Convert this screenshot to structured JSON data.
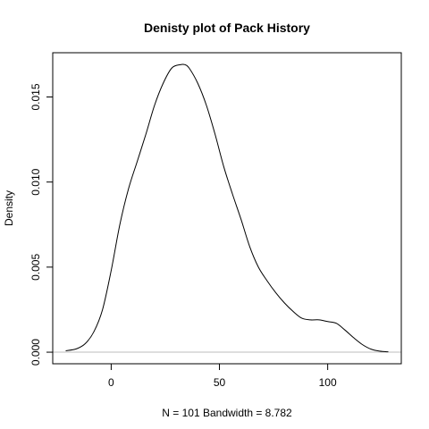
{
  "chart_data": {
    "type": "line",
    "title": "Denisty plot of  Pack History",
    "xlabel": "N = 101   Bandwidth = 8.782",
    "ylabel": "Density",
    "xlim": [
      -27,
      134
    ],
    "ylim": [
      -0.00068,
      0.0176
    ],
    "xticks": [
      0,
      50,
      100
    ],
    "xtick_labels": [
      "0",
      "50",
      "100"
    ],
    "yticks": [
      0.0,
      0.005,
      0.01,
      0.015
    ],
    "ytick_labels": [
      "0.000",
      "0.005",
      "0.010",
      "0.015"
    ],
    "baseline": 0,
    "baseline_color": "#bebebe",
    "line_color": "#000000",
    "grid": false,
    "legend": "none",
    "series": [
      {
        "x": [
          -21,
          -16,
          -12,
          -8,
          -4,
          0,
          4,
          8,
          12,
          16,
          20,
          24,
          28,
          32,
          34,
          36,
          40,
          44,
          48,
          52,
          56,
          60,
          64,
          68,
          72,
          76,
          80,
          84,
          88,
          92,
          96,
          100,
          104,
          108,
          112,
          116,
          120,
          124,
          128
        ],
        "y": [
          8e-05,
          0.0002,
          0.0005,
          0.0012,
          0.0025,
          0.0048,
          0.0075,
          0.0096,
          0.0112,
          0.0128,
          0.0145,
          0.0158,
          0.0167,
          0.0169,
          0.0169,
          0.0167,
          0.0158,
          0.0145,
          0.0128,
          0.0109,
          0.0093,
          0.0078,
          0.0062,
          0.005,
          0.0042,
          0.0035,
          0.0029,
          0.0024,
          0.002,
          0.0019,
          0.0019,
          0.0018,
          0.0017,
          0.0013,
          0.00085,
          0.00045,
          0.00018,
          6e-05,
          2e-05
        ]
      }
    ]
  }
}
